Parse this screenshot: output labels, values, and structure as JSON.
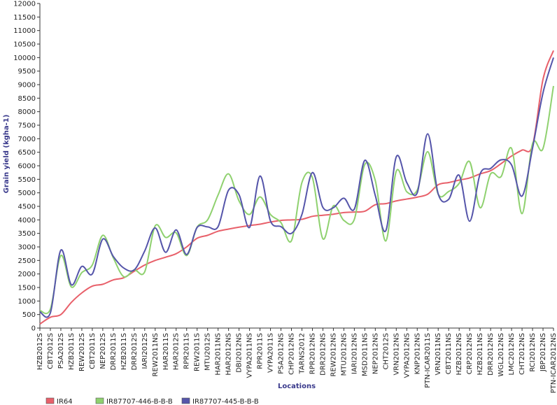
{
  "chart_data": {
    "type": "line",
    "ylabel": "Grain yield (kgha-1)",
    "xlabel": "Locations",
    "ylim": [
      0,
      12000
    ],
    "ytick_step": 500,
    "grid": false,
    "legend_position": "bottom-left",
    "categories": [
      "HZB2012S",
      "CBT2012S",
      "PSA2012S",
      "HZB2011S",
      "REW2012S",
      "CBT2011S",
      "NEP2012S",
      "DRR2011S",
      "HZB2011S",
      "DRR2012S",
      "IARI2012S",
      "REW2011NS",
      "HAR2011S",
      "HAR2012S",
      "RPR2011S",
      "REW2011S",
      "MTU2012S",
      "HAR2011NS",
      "HAR2012NS",
      "DBI2012NS",
      "VYPA2011NS",
      "RPR2011S",
      "VYPA2011S",
      "PSA2012NS",
      "CHP2012NS",
      "TARNS2012",
      "RPR2012NS",
      "DRR2012NS",
      "REW2012NS",
      "MTU2012NS",
      "IARI2012NS",
      "MSD2011NS",
      "NEP2012NS",
      "CHT2012S",
      "VRN2012NS",
      "VYPA2012NS",
      "KNP2012NS",
      "PTN-ICAR2011S",
      "VRN2011NS",
      "CBT2011NS",
      "HZB2012NS",
      "CRP2012NS",
      "HZB2011NS",
      "DRR2012NS",
      "WGL2012NS",
      "LMC2012NS",
      "CHT2012NS",
      "RCI2012NS",
      "JBP2012NS",
      "PTN-ICAR2012NS"
    ],
    "series": [
      {
        "name": "IR64",
        "color": "#e8606a",
        "values": [
          150,
          400,
          500,
          950,
          1300,
          1550,
          1620,
          1780,
          1860,
          2100,
          2330,
          2500,
          2620,
          2750,
          3000,
          3320,
          3430,
          3580,
          3660,
          3730,
          3790,
          3840,
          3920,
          3980,
          4000,
          4020,
          4130,
          4170,
          4210,
          4270,
          4290,
          4320,
          4560,
          4600,
          4700,
          4770,
          4840,
          4950,
          5300,
          5380,
          5470,
          5550,
          5700,
          5820,
          6080,
          6360,
          6580,
          6750,
          9200,
          10260
        ]
      },
      {
        "name": "IR87707-446-B-B-B",
        "color": "#8fd16f",
        "values": [
          650,
          700,
          2680,
          1520,
          2050,
          2330,
          3430,
          2600,
          1900,
          2150,
          2080,
          3780,
          3350,
          3520,
          2680,
          3730,
          4000,
          4920,
          5700,
          4700,
          4200,
          4850,
          4200,
          3900,
          3230,
          5380,
          5560,
          3300,
          4520,
          3980,
          4020,
          6050,
          5450,
          3220,
          5800,
          5040,
          5100,
          6520,
          4950,
          5050,
          5350,
          6150,
          4450,
          5700,
          5600,
          6640,
          4230,
          6820,
          6640,
          8950
        ]
      },
      {
        "name": "IR87707-445-B-B-B",
        "color": "#5555aa",
        "values": [
          600,
          560,
          2880,
          1600,
          2280,
          2000,
          3290,
          2650,
          2220,
          2150,
          2850,
          3700,
          2800,
          3630,
          2720,
          3720,
          3740,
          3750,
          5100,
          4930,
          3720,
          5620,
          3960,
          3750,
          3500,
          4200,
          5750,
          4460,
          4450,
          4800,
          4400,
          6200,
          4900,
          3600,
          6330,
          5380,
          5000,
          7180,
          4960,
          4760,
          5650,
          3950,
          5700,
          5900,
          6220,
          6030,
          4880,
          6650,
          8700,
          10000
        ]
      }
    ]
  }
}
